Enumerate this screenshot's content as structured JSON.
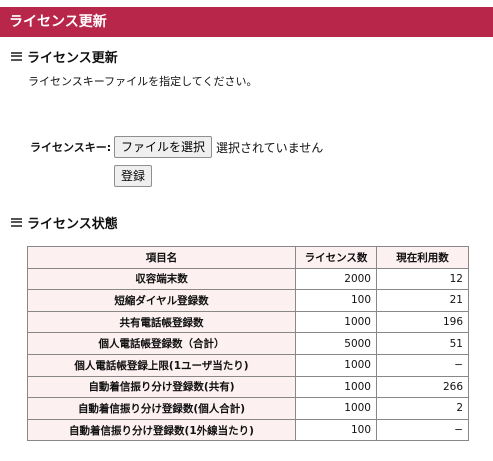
{
  "title": "ライセンス更新",
  "update_section": {
    "heading": "ライセンス更新",
    "description": "ライセンスキーファイルを指定してください。",
    "key_label": "ライセンスキー:",
    "file_button_label": "ファイルを選択",
    "file_status": "選択されていません",
    "register_button_label": "登録"
  },
  "status_section": {
    "heading": "ライセンス状態",
    "columns": [
      "項目名",
      "ライセンス数",
      "現在利用数"
    ],
    "rows": [
      {
        "name": "収容端末数",
        "licenses": "2000",
        "used": "12"
      },
      {
        "name": "短縮ダイヤル登録数",
        "licenses": "100",
        "used": "21"
      },
      {
        "name": "共有電話帳登録数",
        "licenses": "1000",
        "used": "196"
      },
      {
        "name": "個人電話帳登録数（合計）",
        "licenses": "5000",
        "used": "51"
      },
      {
        "name": "個人電話帳登録上限(1ユーザ当たり)",
        "licenses": "1000",
        "used": "−"
      },
      {
        "name": "自動着信振り分け登録数(共有)",
        "licenses": "1000",
        "used": "266"
      },
      {
        "name": "自動着信振り分け登録数(個人合計)",
        "licenses": "1000",
        "used": "2"
      },
      {
        "name": "自動着信振り分け登録数(1外線当たり)",
        "licenses": "100",
        "used": "−"
      }
    ]
  }
}
